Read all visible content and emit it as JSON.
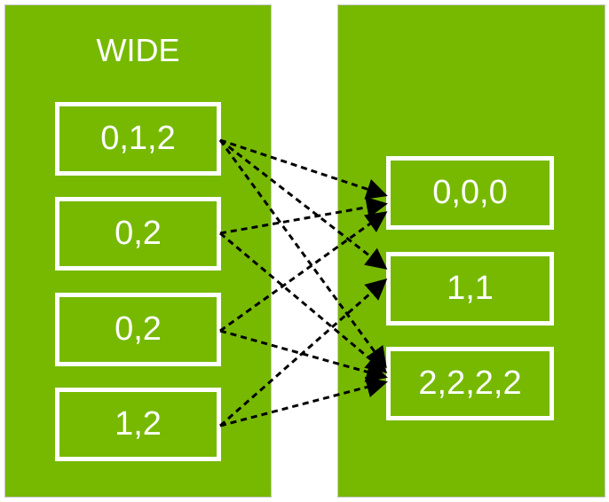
{
  "colors": {
    "panel": "#76b900",
    "box_border": "#ffffff",
    "arrow": "#000000"
  },
  "left": {
    "title": "WIDE",
    "boxes": [
      "0,1,2",
      "0,2",
      "0,2",
      "1,2"
    ]
  },
  "right": {
    "boxes": [
      "0,0,0",
      "1,1",
      "2,2,2,2"
    ]
  },
  "edges": [
    [
      0,
      0
    ],
    [
      0,
      1
    ],
    [
      0,
      2
    ],
    [
      1,
      0
    ],
    [
      1,
      2
    ],
    [
      2,
      0
    ],
    [
      2,
      2
    ],
    [
      3,
      1
    ],
    [
      3,
      2
    ]
  ]
}
